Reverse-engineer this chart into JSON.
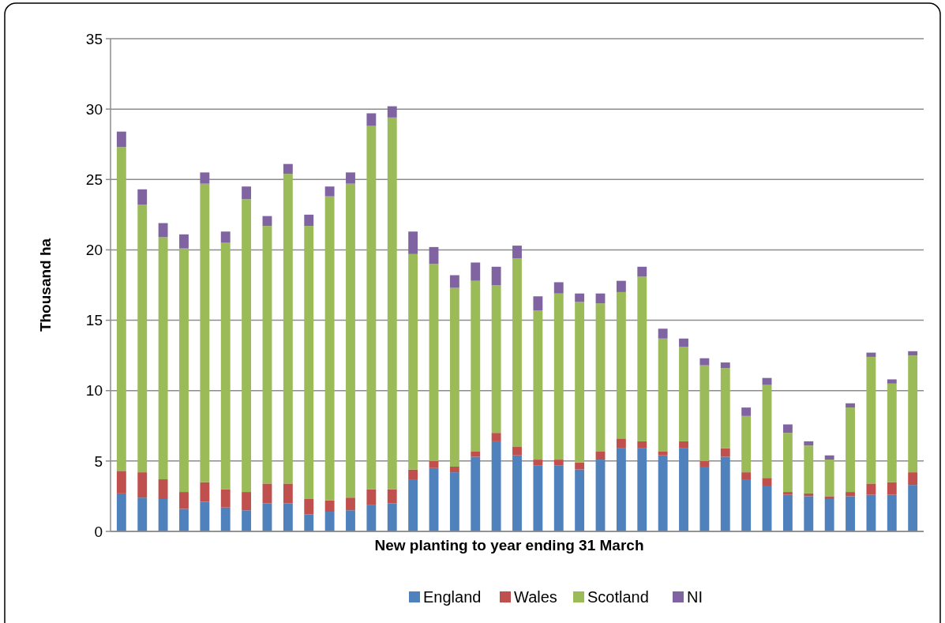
{
  "chart_data": {
    "type": "bar",
    "stacked": true,
    "xlabel": "New planting to year ending 31 March",
    "ylabel": "Thousand ha",
    "categories": [
      null,
      null,
      null,
      null,
      null,
      null,
      null,
      null,
      null,
      null,
      null,
      null,
      null,
      null,
      null,
      null,
      null,
      null,
      null,
      null,
      null,
      null,
      null,
      null,
      null,
      null,
      null,
      null,
      null,
      null,
      null,
      null,
      null,
      null,
      null,
      null,
      null,
      null,
      null
    ],
    "ylim": [
      0,
      35
    ],
    "yticks": [
      0,
      5,
      10,
      15,
      20,
      25,
      30,
      35
    ],
    "grid": "y",
    "legend": "bottom",
    "series": [
      {
        "name": "England",
        "color": "#4f81bd",
        "values": [
          2.7,
          2.4,
          2.3,
          1.6,
          2.1,
          1.7,
          1.5,
          2.0,
          2.0,
          1.2,
          1.4,
          1.5,
          1.9,
          2.0,
          3.7,
          4.5,
          4.2,
          5.3,
          6.4,
          5.4,
          4.7,
          4.7,
          4.4,
          5.1,
          5.9,
          5.9,
          5.4,
          5.9,
          4.6,
          5.3,
          3.7,
          3.2,
          2.6,
          2.5,
          2.3,
          2.5,
          2.6,
          2.6,
          3.3
        ]
      },
      {
        "name": "Wales",
        "color": "#c0504d",
        "values": [
          1.6,
          1.8,
          1.4,
          1.2,
          1.4,
          1.3,
          1.3,
          1.4,
          1.4,
          1.1,
          0.8,
          0.9,
          1.1,
          1.0,
          0.7,
          0.5,
          0.4,
          0.4,
          0.6,
          0.6,
          0.4,
          0.4,
          0.5,
          0.6,
          0.7,
          0.5,
          0.3,
          0.5,
          0.4,
          0.6,
          0.5,
          0.6,
          0.2,
          0.2,
          0.2,
          0.3,
          0.8,
          0.9,
          0.9
        ]
      },
      {
        "name": "Scotland",
        "color": "#9bbb59",
        "values": [
          23.0,
          19.0,
          17.2,
          17.3,
          21.2,
          17.5,
          20.8,
          18.3,
          22.0,
          19.4,
          21.6,
          22.3,
          25.8,
          26.4,
          15.3,
          14.0,
          12.7,
          12.1,
          10.5,
          13.4,
          10.6,
          11.8,
          11.4,
          10.5,
          10.4,
          11.7,
          8.0,
          6.7,
          6.8,
          5.7,
          4.0,
          6.6,
          4.2,
          3.4,
          2.6,
          6.0,
          9.0,
          7.0,
          8.3
        ]
      },
      {
        "name": "NI",
        "color": "#8064a2",
        "values": [
          1.1,
          1.1,
          1.0,
          1.0,
          0.8,
          0.8,
          0.9,
          0.7,
          0.7,
          0.8,
          0.7,
          0.8,
          0.9,
          0.8,
          1.6,
          1.2,
          0.9,
          1.3,
          1.3,
          0.9,
          1.0,
          0.8,
          0.6,
          0.7,
          0.8,
          0.7,
          0.7,
          0.6,
          0.5,
          0.4,
          0.6,
          0.5,
          0.6,
          0.3,
          0.3,
          0.3,
          0.3,
          0.3,
          0.3
        ]
      }
    ]
  }
}
